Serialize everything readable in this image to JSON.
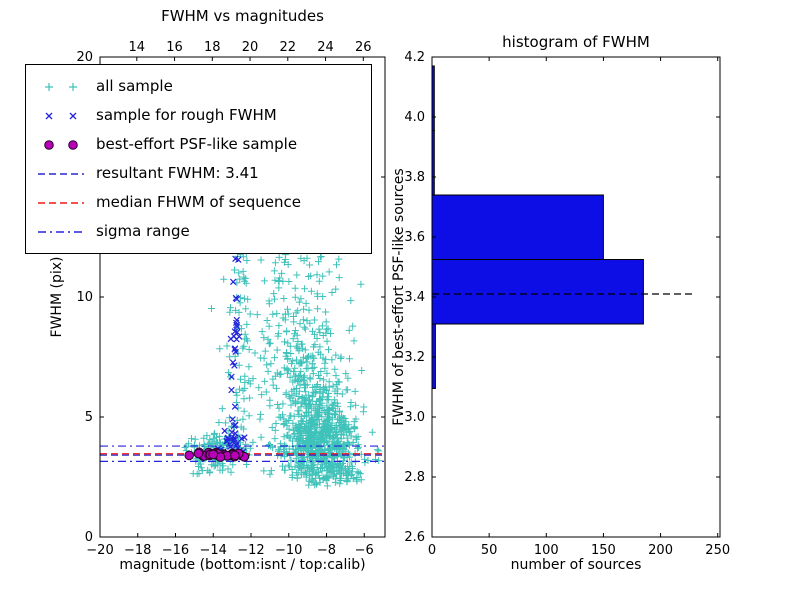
{
  "figure": {
    "background": "#ffffff",
    "text_color": "#000000"
  },
  "chart_data": [
    {
      "type": "scatter",
      "title": "FWHM vs magnitudes",
      "xlabel": "magnitude (bottom:isnt / top:calib)",
      "ylabel": "FWHM (pix)",
      "xlim": [
        -20,
        -4.9
      ],
      "ylim": [
        0,
        20
      ],
      "grid": false,
      "x_ticks": [
        {
          "v": -20,
          "label": "−20"
        },
        {
          "v": -18,
          "label": "−18"
        },
        {
          "v": -16,
          "label": "−16"
        },
        {
          "v": -14,
          "label": "−14"
        },
        {
          "v": -12,
          "label": "−12"
        },
        {
          "v": -10,
          "label": "−10"
        },
        {
          "v": -8,
          "label": "−8"
        },
        {
          "v": -6,
          "label": "−6"
        }
      ],
      "y_ticks": [
        {
          "v": 0,
          "label": "0"
        },
        {
          "v": 5,
          "label": "5"
        },
        {
          "v": 10,
          "label": "10"
        },
        {
          "v": 15,
          "label": "15"
        },
        {
          "v": 20,
          "label": "20"
        }
      ],
      "top_axis": {
        "range": [
          12.05,
          27.15
        ],
        "ticks": [
          {
            "v": 14,
            "label": "14"
          },
          {
            "v": 16,
            "label": "16"
          },
          {
            "v": 18,
            "label": "18"
          },
          {
            "v": 20,
            "label": "20"
          },
          {
            "v": 22,
            "label": "22"
          },
          {
            "v": 24,
            "label": "24"
          },
          {
            "v": 26,
            "label": "26"
          }
        ]
      },
      "series": [
        {
          "name": "all sample",
          "marker": "plus",
          "color": "#3fc2ba",
          "clusters": [
            {
              "n": 650,
              "cx": -8.4,
              "sx": 0.95,
              "cy": 3.9,
              "sy": 1.0,
              "ymin": 2.1,
              "ymax": 7.5
            },
            {
              "n": 280,
              "cx": -9.2,
              "sx": 1.2,
              "cy": 6.5,
              "sy": 2.2,
              "ymin": 2.5,
              "ymax": 13
            },
            {
              "n": 120,
              "cx": -10.0,
              "sx": 1.5,
              "cy": 11.5,
              "sy": 3.5,
              "ymin": 6,
              "ymax": 19.9
            },
            {
              "n": 110,
              "cx": -12.6,
              "sx": 0.45,
              "cy": 9.0,
              "sy": 5.0,
              "ymin": 3.0,
              "ymax": 19.9
            },
            {
              "n": 140,
              "cx": -13.9,
              "sx": 0.9,
              "cy": 3.5,
              "sy": 0.45,
              "ymin": 2.6,
              "ymax": 5.0,
              "xmin": -15.6,
              "xmax": -12.0
            },
            {
              "n": 60,
              "cx": -7.3,
              "sx": 0.8,
              "cy": 2.9,
              "sy": 0.4,
              "ymin": 2.0,
              "ymax": 3.7
            },
            {
              "n": 25,
              "cx": -11.0,
              "sx": 1.6,
              "cy": 17.0,
              "sy": 2.0,
              "ymin": 13.5,
              "ymax": 19.9
            }
          ]
        },
        {
          "name": "sample for rough FWHM",
          "marker": "x",
          "color": "#2424dc",
          "clusters": [
            {
              "n": 30,
              "cx": -12.85,
              "sx": 0.12,
              "cy": 8.0,
              "sy": 3.0,
              "ymin": 3.4,
              "ymax": 13.5
            },
            {
              "n": 26,
              "cx": -13.1,
              "sx": 0.55,
              "cy": 3.9,
              "sy": 0.4,
              "ymin": 3.3,
              "ymax": 5.0,
              "xmin": -14.2,
              "xmax": -12.2
            }
          ]
        },
        {
          "name": "best-effort PSF-like sample",
          "marker": "circle",
          "color": "#b800b8",
          "edge_color": "#260426",
          "clusters": [
            {
              "n": 30,
              "cx": -13.8,
              "sx": 0.9,
              "cy": 3.43,
              "sy": 0.05,
              "xmin": -15.3,
              "xmax": -12.3,
              "ymin": 3.3,
              "ymax": 3.55
            }
          ]
        }
      ],
      "hlines": [
        {
          "name": "resultant FWHM",
          "value": 3.41,
          "style": "dashed",
          "color": "#2828c8"
        },
        {
          "name": "median FHWM of sequence",
          "value": 3.47,
          "style": "dashed",
          "color": "#f01818"
        },
        {
          "name": "sigma range low",
          "value": 3.15,
          "style": "dashdot",
          "color": "#2424dc"
        },
        {
          "name": "sigma range high",
          "value": 3.79,
          "style": "dashdot",
          "color": "#2424dc"
        }
      ],
      "legend": {
        "position": "upper left",
        "items": [
          {
            "label": "all sample",
            "swatch": "marker",
            "marker": "plus",
            "color": "#3fc2ba"
          },
          {
            "label": "sample for rough FWHM",
            "swatch": "marker",
            "marker": "x",
            "color": "#2424dc"
          },
          {
            "label": "best-effort PSF-like sample",
            "swatch": "marker",
            "marker": "circle",
            "color": "#b800b8",
            "edge_color": "#260426"
          },
          {
            "label": "resultant FWHM: 3.41",
            "swatch": "line",
            "dash": "dashed",
            "color": "#2828c8"
          },
          {
            "label": "median FHWM of sequence",
            "swatch": "line",
            "dash": "dashed",
            "color": "#f01818"
          },
          {
            "label": "sigma range",
            "swatch": "line",
            "dash": "dashdot",
            "color": "#2424dc"
          }
        ]
      }
    },
    {
      "type": "barh",
      "title": "histogram of FWHM",
      "xlabel": "number of sources",
      "ylabel": "FWHM of best-effort PSF-like sources",
      "xlim": [
        0,
        252
      ],
      "ylim": [
        2.6,
        4.2
      ],
      "grid": false,
      "x_ticks": [
        {
          "v": 0,
          "label": "0"
        },
        {
          "v": 50,
          "label": "50"
        },
        {
          "v": 100,
          "label": "100"
        },
        {
          "v": 150,
          "label": "150"
        },
        {
          "v": 200,
          "label": "200"
        },
        {
          "v": 250,
          "label": "250"
        }
      ],
      "y_ticks": [
        {
          "v": 2.6,
          "label": "2.6"
        },
        {
          "v": 2.8,
          "label": "2.8"
        },
        {
          "v": 3.0,
          "label": "3.0"
        },
        {
          "v": 3.2,
          "label": "3.2"
        },
        {
          "v": 3.4,
          "label": "3.4"
        },
        {
          "v": 3.6,
          "label": "3.6"
        },
        {
          "v": 3.8,
          "label": "3.8"
        },
        {
          "v": 4.0,
          "label": "4.0"
        },
        {
          "v": 4.2,
          "label": "4.2"
        }
      ],
      "bins": {
        "edges": [
          3.095,
          3.31,
          3.525,
          3.74,
          3.955,
          4.17
        ],
        "counts": [
          3,
          185,
          150,
          2,
          2
        ]
      },
      "bar_color": "#0d0de6",
      "bar_edge_color": "#000000",
      "median_line": {
        "value": 3.41,
        "x_end": 228,
        "style": "dashed",
        "color": "#000000"
      }
    }
  ]
}
